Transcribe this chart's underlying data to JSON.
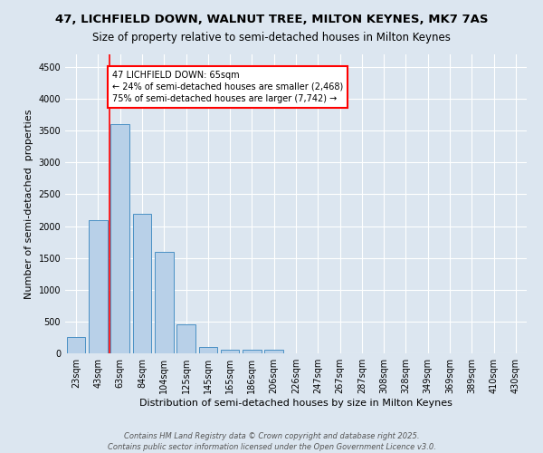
{
  "title": "47, LICHFIELD DOWN, WALNUT TREE, MILTON KEYNES, MK7 7AS",
  "subtitle": "Size of property relative to semi-detached houses in Milton Keynes",
  "xlabel": "Distribution of semi-detached houses by size in Milton Keynes",
  "ylabel": "Number of semi-detached  properties",
  "footnote1": "Contains HM Land Registry data © Crown copyright and database right 2025.",
  "footnote2": "Contains public sector information licensed under the Open Government Licence v3.0.",
  "categories": [
    "23sqm",
    "43sqm",
    "63sqm",
    "84sqm",
    "104sqm",
    "125sqm",
    "145sqm",
    "165sqm",
    "186sqm",
    "206sqm",
    "226sqm",
    "247sqm",
    "267sqm",
    "287sqm",
    "308sqm",
    "328sqm",
    "349sqm",
    "369sqm",
    "389sqm",
    "410sqm",
    "430sqm"
  ],
  "values": [
    250,
    2100,
    3600,
    2200,
    1600,
    450,
    100,
    50,
    50,
    50,
    0,
    0,
    0,
    0,
    0,
    0,
    0,
    0,
    0,
    0,
    0
  ],
  "bar_color": "#b8d0e8",
  "bar_edgecolor": "#4a90c4",
  "annotation_line1": "47 LICHFIELD DOWN: 65sqm",
  "annotation_line2": "← 24% of semi-detached houses are smaller (2,468)",
  "annotation_line3": "75% of semi-detached houses are larger (7,742) →",
  "annotation_box_color": "white",
  "annotation_box_edgecolor": "red",
  "ylim": [
    0,
    4700
  ],
  "yticks": [
    0,
    500,
    1000,
    1500,
    2000,
    2500,
    3000,
    3500,
    4000,
    4500
  ],
  "background_color": "#dce6f0",
  "plot_bg_color": "#dce6f0",
  "title_fontsize": 9.5,
  "subtitle_fontsize": 8.5,
  "xlabel_fontsize": 8,
  "ylabel_fontsize": 8,
  "tick_fontsize": 7,
  "annotation_fontsize": 7,
  "footnote_fontsize": 6
}
